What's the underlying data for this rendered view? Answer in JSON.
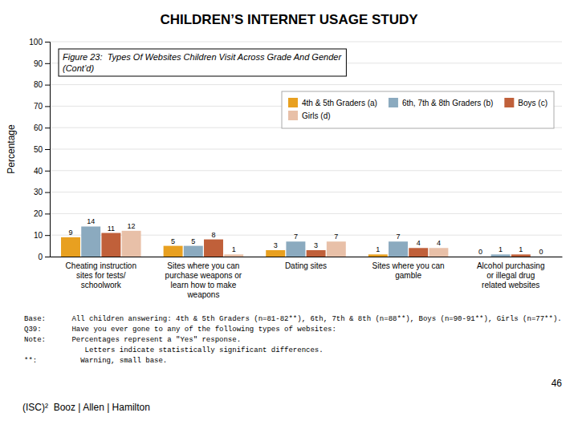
{
  "chart_data": {
    "type": "bar",
    "title": "CHILDREN’S INTERNET USAGE STUDY",
    "subtitle": "Figure 23:  Types Of Websites Children Visit Across Grade And Gender\n(Cont’d)",
    "ylabel": "Percentage",
    "categories": [
      "Cheating instruction\nsites for tests/\nschoolwork",
      "Sites where you can\npurchase weapons or\nlearn how to make\nweapons",
      "Dating sites",
      "Sites where you can\ngamble",
      "Alcohol purchasing\nor illegal drug\nrelated websites"
    ],
    "series": [
      {
        "name": "4th & 5th Graders (a)",
        "color": "#E8A020",
        "values": [
          9,
          5,
          3,
          1,
          0
        ]
      },
      {
        "name": "6th, 7th & 8th Graders (b)",
        "color": "#8BAABF",
        "values": [
          14,
          5,
          7,
          7,
          1
        ]
      },
      {
        "name": "Boys (c)",
        "color": "#C0603A",
        "values": [
          11,
          8,
          3,
          4,
          1
        ]
      },
      {
        "name": "Girls (d)",
        "color": "#E8C0A8",
        "values": [
          12,
          1,
          7,
          4,
          0
        ]
      }
    ],
    "ylim": [
      0,
      100
    ],
    "yticks": [
      0,
      10,
      20,
      30,
      40,
      50,
      60,
      70,
      80,
      90,
      100
    ],
    "grid": true,
    "legend": "upper right",
    "data_labels": true,
    "notes": [
      "Base:      All children answering: 4th & 5th Graders (n=81-82**), 6th, 7th & 8th (n=88**), Boys (n=90-91**), Girls (n=77**).",
      "Q39:       Have you ever gone to any of the following types of websites:",
      "Note:      Percentages represent a \"Yes\" response.",
      "              Letters indicate statistically significant differences.",
      "**:          Warning, small base."
    ],
    "page_number": "46",
    "logo": "(ISC)²  Booz | Allen | Hamilton"
  }
}
